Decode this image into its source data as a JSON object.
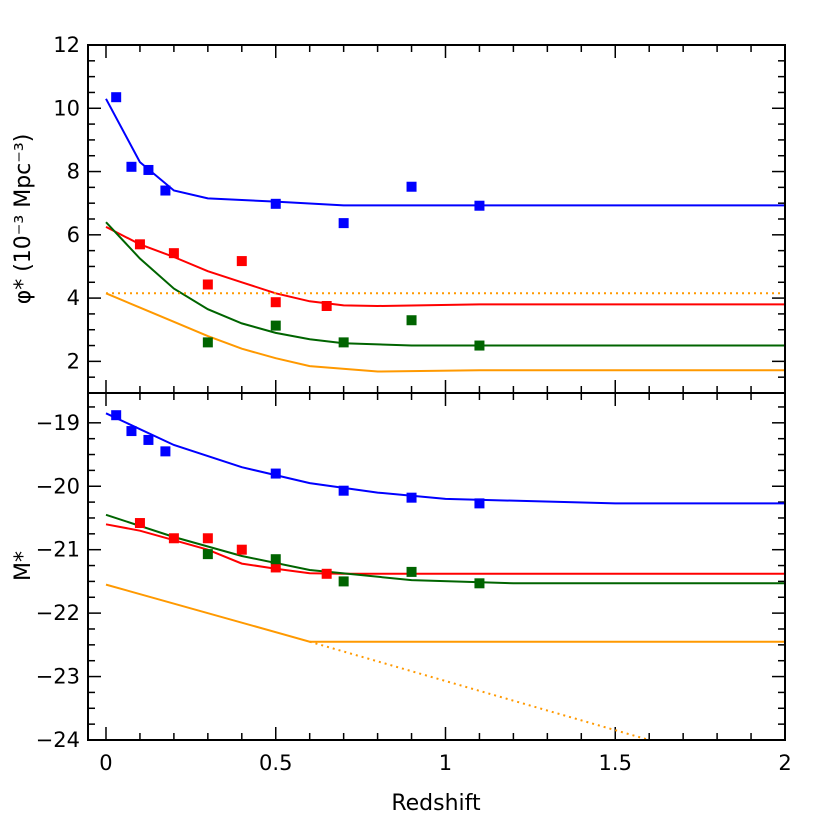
{
  "chart_data": [
    {
      "type": "line",
      "panel": "top",
      "xlabel": "",
      "ylabel": "φ* (10⁻³ Mpc⁻³)",
      "xlim": [
        -0.053,
        2.0
      ],
      "ylim": [
        1.0,
        12.0
      ],
      "xticks": [
        "0",
        "0.5",
        "1",
        "1.5",
        "2"
      ],
      "xtick_values": [
        0,
        0.5,
        1,
        1.5,
        2
      ],
      "yticks": [
        "2",
        "4",
        "6",
        "8",
        "10",
        "12"
      ],
      "ytick_values": [
        2,
        4,
        6,
        8,
        10,
        12
      ],
      "show_xtick_labels": false,
      "series": [
        {
          "color": "#0000ff",
          "style": "solid",
          "x": [
            0,
            0.1,
            0.2,
            0.3,
            0.5,
            0.7,
            2
          ],
          "y": [
            10.3,
            8.3,
            7.4,
            7.15,
            7.05,
            6.93,
            6.93
          ]
        },
        {
          "color": "#ff0000",
          "style": "solid",
          "x": [
            0,
            0.1,
            0.2,
            0.3,
            0.4,
            0.5,
            0.6,
            0.7,
            0.8,
            1.1,
            2
          ],
          "y": [
            6.25,
            5.7,
            5.3,
            4.85,
            4.5,
            4.15,
            3.9,
            3.77,
            3.75,
            3.8,
            3.8
          ]
        },
        {
          "color": "#006400",
          "style": "solid",
          "x": [
            0,
            0.1,
            0.2,
            0.3,
            0.4,
            0.5,
            0.6,
            0.7,
            0.9,
            2
          ],
          "y": [
            6.4,
            5.25,
            4.3,
            3.65,
            3.2,
            2.9,
            2.7,
            2.57,
            2.5,
            2.5
          ]
        },
        {
          "color": "#ff9900",
          "style": "solid",
          "x": [
            0,
            0.1,
            0.2,
            0.3,
            0.4,
            0.5,
            0.6,
            0.8,
            1.1,
            2
          ],
          "y": [
            4.15,
            3.7,
            3.25,
            2.8,
            2.4,
            2.1,
            1.85,
            1.68,
            1.72,
            1.72
          ]
        },
        {
          "color": "#ff9900",
          "style": "dotted",
          "x": [
            0,
            2
          ],
          "y": [
            4.15,
            4.15
          ]
        }
      ],
      "points": [
        {
          "color": "#0000ff",
          "x": [
            0.03,
            0.075,
            0.125,
            0.175,
            0.5,
            0.7,
            0.9,
            1.1
          ],
          "y": [
            10.35,
            8.15,
            8.05,
            7.4,
            6.98,
            6.37,
            7.52,
            6.92
          ]
        },
        {
          "color": "#ff0000",
          "x": [
            0.1,
            0.2,
            0.3,
            0.4,
            0.5,
            0.65
          ],
          "y": [
            5.7,
            5.42,
            4.43,
            5.17,
            3.87,
            3.75
          ]
        },
        {
          "color": "#006400",
          "x": [
            0.3,
            0.5,
            0.7,
            0.9,
            1.1
          ],
          "y": [
            2.6,
            3.13,
            2.6,
            3.3,
            2.5
          ]
        }
      ]
    },
    {
      "type": "line",
      "panel": "bottom",
      "xlabel": "Redshift",
      "ylabel": "M*",
      "xlim": [
        -0.053,
        2.0
      ],
      "ylim": [
        -24.0,
        -18.53
      ],
      "xticks": [
        "0",
        "0.5",
        "1",
        "1.5",
        "2"
      ],
      "xtick_values": [
        0,
        0.5,
        1,
        1.5,
        2
      ],
      "yticks": [
        "−19",
        "−20",
        "−21",
        "−22",
        "−23",
        "−24"
      ],
      "ytick_values": [
        -19,
        -20,
        -21,
        -22,
        -23,
        -24
      ],
      "show_xtick_labels": true,
      "series": [
        {
          "color": "#0000ff",
          "style": "solid",
          "x": [
            0,
            0.2,
            0.4,
            0.6,
            0.8,
            1.0,
            1.5,
            2
          ],
          "y": [
            -18.85,
            -19.35,
            -19.7,
            -19.95,
            -20.1,
            -20.2,
            -20.27,
            -20.27
          ]
        },
        {
          "color": "#ff0000",
          "style": "solid",
          "x": [
            0,
            0.1,
            0.2,
            0.3,
            0.4,
            0.5,
            0.6,
            0.7,
            2
          ],
          "y": [
            -20.6,
            -20.7,
            -20.85,
            -21.0,
            -21.22,
            -21.3,
            -21.37,
            -21.38,
            -21.38
          ]
        },
        {
          "color": "#006400",
          "style": "solid",
          "x": [
            0,
            0.2,
            0.4,
            0.6,
            0.9,
            1.2,
            2
          ],
          "y": [
            -20.45,
            -20.8,
            -21.1,
            -21.32,
            -21.48,
            -21.53,
            -21.53
          ]
        },
        {
          "color": "#ff9900",
          "style": "solid",
          "x": [
            0,
            0.6,
            2
          ],
          "y": [
            -21.55,
            -22.45,
            -22.45
          ]
        },
        {
          "color": "#ff9900",
          "style": "dotted",
          "x": [
            0.6,
            1.6
          ],
          "y": [
            -22.45,
            -24.0
          ]
        }
      ],
      "points": [
        {
          "color": "#0000ff",
          "x": [
            0.03,
            0.075,
            0.125,
            0.175,
            0.5,
            0.7,
            0.9,
            1.1
          ],
          "y": [
            -18.88,
            -19.13,
            -19.27,
            -19.45,
            -19.8,
            -20.07,
            -20.18,
            -20.27
          ]
        },
        {
          "color": "#ff0000",
          "x": [
            0.1,
            0.2,
            0.3,
            0.4,
            0.5,
            0.65
          ],
          "y": [
            -20.58,
            -20.82,
            -20.82,
            -21.0,
            -21.28,
            -21.38
          ]
        },
        {
          "color": "#006400",
          "x": [
            0.3,
            0.5,
            0.7,
            0.9,
            1.1
          ],
          "y": [
            -21.07,
            -21.15,
            -21.5,
            -21.35,
            -21.53
          ]
        }
      ]
    }
  ]
}
